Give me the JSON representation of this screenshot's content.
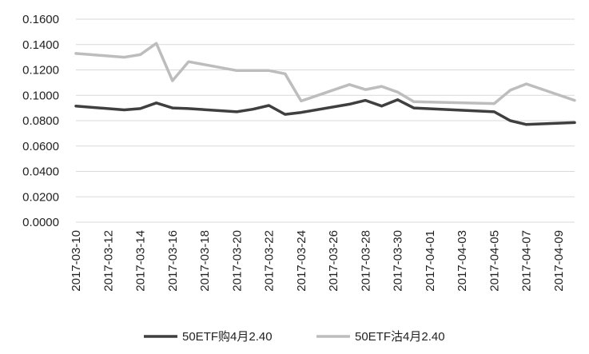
{
  "chart_data": {
    "type": "line",
    "ylim": [
      0,
      0.16
    ],
    "y_ticks": [
      "0.0000",
      "0.0200",
      "0.0400",
      "0.0600",
      "0.0800",
      "0.1000",
      "0.1200",
      "0.1400",
      "0.1600"
    ],
    "x_tick_labels": [
      "2017-03-10",
      "2017-03-12",
      "2017-03-14",
      "2017-03-16",
      "2017-03-18",
      "2017-03-20",
      "2017-03-22",
      "2017-03-24",
      "2017-03-26",
      "2017-03-28",
      "2017-03-30",
      "2017-04-01",
      "2017-04-03",
      "2017-04-05",
      "2017-04-07",
      "2017-04-09"
    ],
    "x_start": "2017-03-10",
    "x_end": "2017-04-10",
    "grid": true,
    "legend_position": "bottom",
    "series": [
      {
        "name": "50ETF购4月2.40",
        "color": "#3f3f3f",
        "points": [
          [
            "2017-03-10",
            0.0915
          ],
          [
            "2017-03-13",
            0.0885
          ],
          [
            "2017-03-14",
            0.0895
          ],
          [
            "2017-03-15",
            0.094
          ],
          [
            "2017-03-16",
            0.09
          ],
          [
            "2017-03-17",
            0.0895
          ],
          [
            "2017-03-20",
            0.087
          ],
          [
            "2017-03-21",
            0.089
          ],
          [
            "2017-03-22",
            0.092
          ],
          [
            "2017-03-23",
            0.085
          ],
          [
            "2017-03-24",
            0.0865
          ],
          [
            "2017-03-27",
            0.093
          ],
          [
            "2017-03-28",
            0.096
          ],
          [
            "2017-03-29",
            0.0915
          ],
          [
            "2017-03-30",
            0.0965
          ],
          [
            "2017-03-31",
            0.09
          ],
          [
            "2017-04-05",
            0.087
          ],
          [
            "2017-04-06",
            0.08
          ],
          [
            "2017-04-07",
            0.077
          ],
          [
            "2017-04-10",
            0.0785
          ]
        ]
      },
      {
        "name": "50ETF沽4月2.40",
        "color": "#bdbdbd",
        "points": [
          [
            "2017-03-10",
            0.133
          ],
          [
            "2017-03-13",
            0.13
          ],
          [
            "2017-03-14",
            0.132
          ],
          [
            "2017-03-15",
            0.141
          ],
          [
            "2017-03-16",
            0.1115
          ],
          [
            "2017-03-17",
            0.1265
          ],
          [
            "2017-03-20",
            0.1195
          ],
          [
            "2017-03-21",
            0.1195
          ],
          [
            "2017-03-22",
            0.1195
          ],
          [
            "2017-03-23",
            0.117
          ],
          [
            "2017-03-24",
            0.0955
          ],
          [
            "2017-03-27",
            0.1085
          ],
          [
            "2017-03-28",
            0.1045
          ],
          [
            "2017-03-29",
            0.107
          ],
          [
            "2017-03-30",
            0.1025
          ],
          [
            "2017-03-31",
            0.095
          ],
          [
            "2017-04-05",
            0.0935
          ],
          [
            "2017-04-06",
            0.104
          ],
          [
            "2017-04-07",
            0.109
          ],
          [
            "2017-04-10",
            0.096
          ]
        ]
      }
    ]
  }
}
